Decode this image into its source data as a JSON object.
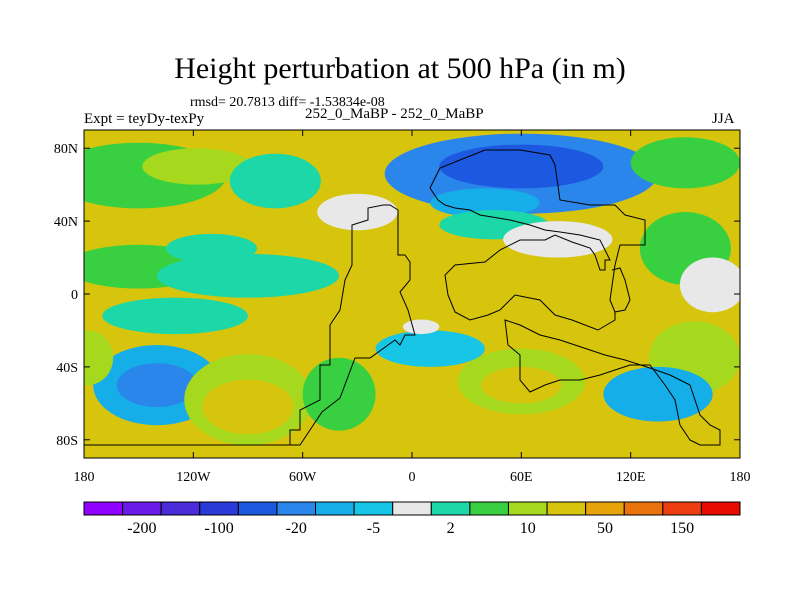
{
  "chart_data": {
    "type": "heatmap",
    "title": "Height perturbation at 500 hPa (in m)",
    "stats_text": "rmsd= 20.7813 diff= -1.53834e-08",
    "left_label": "Expt = teyDy-texPy",
    "center_label": "252_0_MaBP - 252_0_MaBP",
    "right_label": "JJA",
    "xlim": [
      -180,
      180
    ],
    "ylim": [
      -90,
      90
    ],
    "x_ticks": [
      {
        "value": -180,
        "label": "180"
      },
      {
        "value": -120,
        "label": "120W"
      },
      {
        "value": -60,
        "label": "60W"
      },
      {
        "value": 0,
        "label": "0"
      },
      {
        "value": 60,
        "label": "60E"
      },
      {
        "value": 120,
        "label": "120E"
      },
      {
        "value": 180,
        "label": "180"
      }
    ],
    "y_ticks": [
      {
        "value": 80,
        "label": "80N"
      },
      {
        "value": 40,
        "label": "40N"
      },
      {
        "value": 0,
        "label": "0"
      },
      {
        "value": -40,
        "label": "40S"
      },
      {
        "value": -80,
        "label": "80S"
      }
    ],
    "colorbar": {
      "colors": [
        "#8f00ff",
        "#6a1be8",
        "#4a2bd9",
        "#2a3ad8",
        "#1c58e0",
        "#2a86ea",
        "#16aee8",
        "#17c6e6",
        "#e8e8e8",
        "#1cd7a8",
        "#38d040",
        "#a6d81e",
        "#d6c50c",
        "#e7a40a",
        "#e9720c",
        "#ec3e10",
        "#e60a00"
      ],
      "tick_labels": [
        "-200",
        "-100",
        "-20",
        "-5",
        "2",
        "10",
        "50",
        "150"
      ],
      "tick_boundaries": [
        1,
        3,
        5,
        7,
        9,
        11,
        13,
        15
      ]
    },
    "field": {
      "background_level": 4,
      "blobs": [
        {
          "lon": -150,
          "lat": 65,
          "rx": 48,
          "ry": 18,
          "level": 2
        },
        {
          "lon": -118,
          "lat": 70,
          "rx": 30,
          "ry": 10,
          "level": 3
        },
        {
          "lon": -75,
          "lat": 62,
          "rx": 25,
          "ry": 15,
          "level": 1
        },
        {
          "lon": 60,
          "lat": 66,
          "rx": 75,
          "ry": 22,
          "level": -3
        },
        {
          "lon": 60,
          "lat": 70,
          "rx": 45,
          "ry": 12,
          "level": -4
        },
        {
          "lon": 40,
          "lat": 50,
          "rx": 30,
          "ry": 8,
          "level": -2
        },
        {
          "lon": 150,
          "lat": 72,
          "rx": 30,
          "ry": 14,
          "level": 2
        },
        {
          "lon": -30,
          "lat": 45,
          "rx": 22,
          "ry": 10,
          "level": 0
        },
        {
          "lon": 45,
          "lat": 38,
          "rx": 30,
          "ry": 8,
          "level": 1
        },
        {
          "lon": 80,
          "lat": 30,
          "rx": 30,
          "ry": 10,
          "level": 0
        },
        {
          "lon": 150,
          "lat": 25,
          "rx": 25,
          "ry": 20,
          "level": 2
        },
        {
          "lon": 165,
          "lat": 5,
          "rx": 18,
          "ry": 15,
          "level": 0
        },
        {
          "lon": -150,
          "lat": 15,
          "rx": 40,
          "ry": 12,
          "level": 2
        },
        {
          "lon": -110,
          "lat": 25,
          "rx": 25,
          "ry": 8,
          "level": 1
        },
        {
          "lon": -90,
          "lat": 10,
          "rx": 50,
          "ry": 12,
          "level": 1
        },
        {
          "lon": -130,
          "lat": -12,
          "rx": 40,
          "ry": 10,
          "level": 1
        },
        {
          "lon": -140,
          "lat": -50,
          "rx": 35,
          "ry": 22,
          "level": -2
        },
        {
          "lon": -140,
          "lat": -50,
          "rx": 22,
          "ry": 12,
          "level": -3
        },
        {
          "lon": -90,
          "lat": -58,
          "rx": 35,
          "ry": 25,
          "level": 3
        },
        {
          "lon": -90,
          "lat": -62,
          "rx": 25,
          "ry": 15,
          "level": 4
        },
        {
          "lon": -40,
          "lat": -55,
          "rx": 20,
          "ry": 20,
          "level": 2
        },
        {
          "lon": 60,
          "lat": -48,
          "rx": 35,
          "ry": 18,
          "level": 3
        },
        {
          "lon": 60,
          "lat": -50,
          "rx": 22,
          "ry": 10,
          "level": 4
        },
        {
          "lon": 155,
          "lat": -35,
          "rx": 25,
          "ry": 20,
          "level": 3
        },
        {
          "lon": 135,
          "lat": -55,
          "rx": 30,
          "ry": 15,
          "level": -2
        },
        {
          "lon": 10,
          "lat": -30,
          "rx": 30,
          "ry": 10,
          "level": -1
        },
        {
          "lon": 5,
          "lat": -18,
          "rx": 10,
          "ry": 4,
          "level": 0
        },
        {
          "lon": -178,
          "lat": -35,
          "rx": 14,
          "ry": 15,
          "level": 3
        }
      ]
    }
  }
}
